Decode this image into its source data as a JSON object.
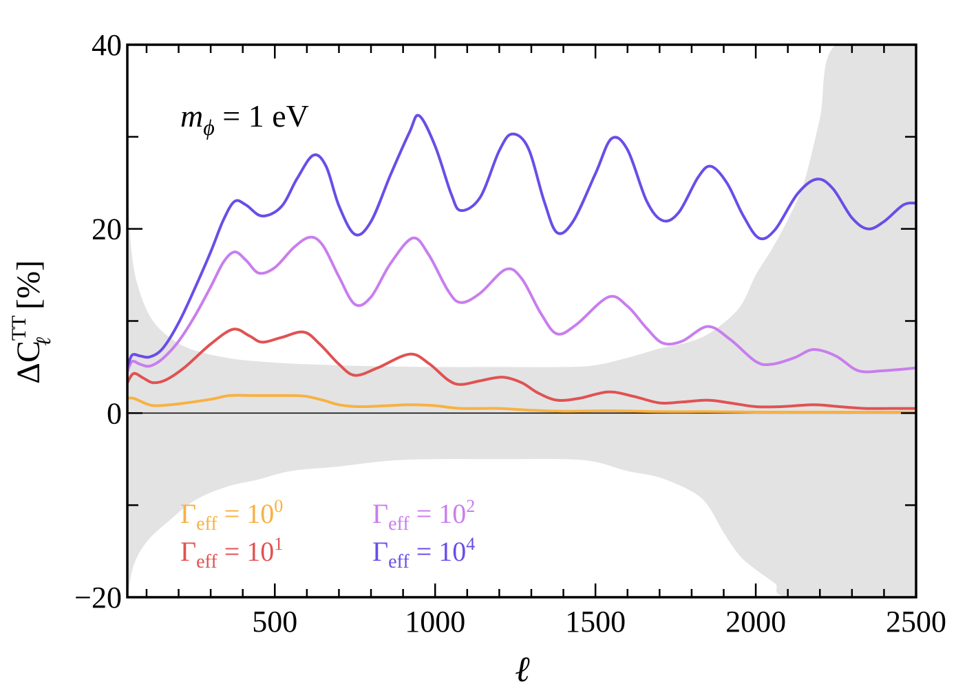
{
  "chart_data": {
    "type": "line",
    "title": "",
    "annotation": {
      "symbol": "m",
      "subscript": "ϕ",
      "rest": " = 1 eV"
    },
    "xlabel": "ℓ",
    "ylabel": {
      "prefix": "ΔC",
      "superscript": "TT",
      "subscript": "ℓ",
      "unit": "[%]"
    },
    "xlim": [
      40,
      2500
    ],
    "ylim": [
      -20,
      40
    ],
    "xticks": [
      500,
      1000,
      1500,
      2000,
      2500
    ],
    "yticks": [
      -20,
      0,
      20,
      40
    ],
    "ytick_labels": [
      "−20",
      "0",
      "20",
      "40"
    ],
    "legend_placement": "bottom-left",
    "series": [
      {
        "name": "Γeff = 10^0",
        "label": {
          "base": "Γ",
          "sub": "eff",
          "eq": " = 10",
          "exp": "0"
        },
        "color": "#F8B142",
        "points": [
          [
            40,
            1.6
          ],
          [
            60,
            1.6
          ],
          [
            100,
            1.0
          ],
          [
            130,
            0.8
          ],
          [
            200,
            1.0
          ],
          [
            300,
            1.5
          ],
          [
            360,
            1.9
          ],
          [
            450,
            1.9
          ],
          [
            550,
            1.9
          ],
          [
            600,
            1.8
          ],
          [
            650,
            1.4
          ],
          [
            700,
            0.9
          ],
          [
            760,
            0.7
          ],
          [
            850,
            0.8
          ],
          [
            920,
            0.9
          ],
          [
            1000,
            0.8
          ],
          [
            1080,
            0.5
          ],
          [
            1200,
            0.5
          ],
          [
            1300,
            0.3
          ],
          [
            1400,
            0.2
          ],
          [
            1550,
            0.25
          ],
          [
            1700,
            0.15
          ],
          [
            1850,
            0.15
          ],
          [
            2000,
            0.1
          ],
          [
            2200,
            0.1
          ],
          [
            2500,
            0.1
          ]
        ]
      },
      {
        "name": "Γeff = 10^1",
        "label": {
          "base": "Γ",
          "sub": "eff",
          "eq": " = 10",
          "exp": "1"
        },
        "color": "#E05252",
        "points": [
          [
            40,
            3.3
          ],
          [
            60,
            4.3
          ],
          [
            90,
            3.8
          ],
          [
            120,
            3.3
          ],
          [
            160,
            3.6
          ],
          [
            220,
            5.0
          ],
          [
            300,
            7.5
          ],
          [
            370,
            9.1
          ],
          [
            420,
            8.4
          ],
          [
            460,
            7.7
          ],
          [
            520,
            8.2
          ],
          [
            590,
            8.8
          ],
          [
            640,
            7.5
          ],
          [
            700,
            5.3
          ],
          [
            750,
            4.1
          ],
          [
            820,
            4.9
          ],
          [
            920,
            6.4
          ],
          [
            980,
            5.4
          ],
          [
            1040,
            3.6
          ],
          [
            1080,
            3.1
          ],
          [
            1140,
            3.5
          ],
          [
            1210,
            3.9
          ],
          [
            1270,
            3.3
          ],
          [
            1320,
            2.2
          ],
          [
            1380,
            1.4
          ],
          [
            1450,
            1.6
          ],
          [
            1540,
            2.3
          ],
          [
            1620,
            1.8
          ],
          [
            1700,
            1.1
          ],
          [
            1770,
            1.2
          ],
          [
            1850,
            1.4
          ],
          [
            1920,
            1.1
          ],
          [
            2000,
            0.7
          ],
          [
            2080,
            0.7
          ],
          [
            2180,
            0.9
          ],
          [
            2260,
            0.7
          ],
          [
            2340,
            0.5
          ],
          [
            2420,
            0.5
          ],
          [
            2500,
            0.5
          ]
        ]
      },
      {
        "name": "Γeff = 10^2",
        "label": {
          "base": "Γ",
          "sub": "eff",
          "eq": " = 10",
          "exp": "2"
        },
        "color": "#C87EEE",
        "points": [
          [
            40,
            4.5
          ],
          [
            55,
            5.6
          ],
          [
            80,
            5.3
          ],
          [
            110,
            5.1
          ],
          [
            150,
            5.9
          ],
          [
            200,
            7.8
          ],
          [
            250,
            10.5
          ],
          [
            300,
            13.7
          ],
          [
            340,
            16.4
          ],
          [
            375,
            17.5
          ],
          [
            410,
            16.6
          ],
          [
            450,
            15.2
          ],
          [
            500,
            15.8
          ],
          [
            560,
            18.0
          ],
          [
            610,
            19.1
          ],
          [
            650,
            18.2
          ],
          [
            700,
            14.8
          ],
          [
            750,
            11.8
          ],
          [
            800,
            12.6
          ],
          [
            860,
            16.2
          ],
          [
            930,
            19.0
          ],
          [
            980,
            17.2
          ],
          [
            1040,
            13.3
          ],
          [
            1080,
            12.0
          ],
          [
            1140,
            13.0
          ],
          [
            1220,
            15.6
          ],
          [
            1270,
            14.6
          ],
          [
            1330,
            10.8
          ],
          [
            1380,
            8.6
          ],
          [
            1440,
            9.6
          ],
          [
            1540,
            12.6
          ],
          [
            1600,
            11.6
          ],
          [
            1660,
            9.2
          ],
          [
            1710,
            7.6
          ],
          [
            1770,
            7.8
          ],
          [
            1850,
            9.4
          ],
          [
            1920,
            8.0
          ],
          [
            2000,
            5.6
          ],
          [
            2050,
            5.3
          ],
          [
            2120,
            6.0
          ],
          [
            2180,
            6.9
          ],
          [
            2250,
            6.2
          ],
          [
            2320,
            4.6
          ],
          [
            2400,
            4.6
          ],
          [
            2500,
            4.9
          ]
        ]
      },
      {
        "name": "Γeff = 10^4",
        "label": {
          "base": "Γ",
          "sub": "eff",
          "eq": " = 10",
          "exp": "4"
        },
        "color": "#6A4DE8",
        "points": [
          [
            40,
            5.0
          ],
          [
            55,
            6.3
          ],
          [
            80,
            6.2
          ],
          [
            110,
            6.1
          ],
          [
            150,
            7.0
          ],
          [
            200,
            9.8
          ],
          [
            250,
            13.5
          ],
          [
            300,
            17.5
          ],
          [
            340,
            21.0
          ],
          [
            375,
            23.0
          ],
          [
            410,
            22.6
          ],
          [
            460,
            21.4
          ],
          [
            520,
            22.4
          ],
          [
            570,
            25.5
          ],
          [
            620,
            28.0
          ],
          [
            660,
            26.8
          ],
          [
            700,
            22.5
          ],
          [
            750,
            19.4
          ],
          [
            800,
            20.8
          ],
          [
            860,
            25.8
          ],
          [
            920,
            30.5
          ],
          [
            950,
            32.3
          ],
          [
            1000,
            29.0
          ],
          [
            1050,
            23.8
          ],
          [
            1080,
            22.0
          ],
          [
            1140,
            23.4
          ],
          [
            1200,
            28.5
          ],
          [
            1240,
            30.3
          ],
          [
            1290,
            28.8
          ],
          [
            1340,
            23.0
          ],
          [
            1380,
            19.6
          ],
          [
            1430,
            20.8
          ],
          [
            1500,
            26.0
          ],
          [
            1550,
            29.8
          ],
          [
            1600,
            28.6
          ],
          [
            1660,
            23.0
          ],
          [
            1710,
            20.9
          ],
          [
            1760,
            21.8
          ],
          [
            1820,
            25.6
          ],
          [
            1860,
            26.8
          ],
          [
            1910,
            25.0
          ],
          [
            1960,
            21.5
          ],
          [
            2010,
            19.0
          ],
          [
            2060,
            19.9
          ],
          [
            2130,
            23.8
          ],
          [
            2190,
            25.4
          ],
          [
            2240,
            24.4
          ],
          [
            2300,
            21.2
          ],
          [
            2350,
            20.0
          ],
          [
            2400,
            20.8
          ],
          [
            2460,
            22.6
          ],
          [
            2500,
            22.8
          ]
        ]
      }
    ],
    "band": {
      "name": "uncertainty",
      "color": "#E3E3E3",
      "upper": [
        [
          40,
          40
        ],
        [
          44,
          24
        ],
        [
          55,
          17
        ],
        [
          80,
          13
        ],
        [
          120,
          10
        ],
        [
          180,
          8
        ],
        [
          250,
          6.8
        ],
        [
          350,
          6.0
        ],
        [
          450,
          5.6
        ],
        [
          600,
          5.3
        ],
        [
          800,
          5.1
        ],
        [
          1000,
          5.0
        ],
        [
          1200,
          5.0
        ],
        [
          1400,
          5.0
        ],
        [
          1500,
          5.2
        ],
        [
          1600,
          6.0
        ],
        [
          1700,
          7.0
        ],
        [
          1800,
          7.8
        ],
        [
          1870,
          9.0
        ],
        [
          1950,
          11.5
        ],
        [
          2000,
          15
        ],
        [
          2050,
          17.8
        ],
        [
          2100,
          21
        ],
        [
          2150,
          25
        ],
        [
          2200,
          32
        ],
        [
          2250,
          40
        ],
        [
          2500,
          40
        ]
      ],
      "lower": [
        [
          40,
          -20
        ],
        [
          60,
          -16.5
        ],
        [
          100,
          -14
        ],
        [
          160,
          -12
        ],
        [
          250,
          -9.5
        ],
        [
          350,
          -8
        ],
        [
          450,
          -7.2
        ],
        [
          550,
          -6.3
        ],
        [
          700,
          -5.8
        ],
        [
          850,
          -5.2
        ],
        [
          1000,
          -5.0
        ],
        [
          1200,
          -5.0
        ],
        [
          1400,
          -5.0
        ],
        [
          1500,
          -5.3
        ],
        [
          1600,
          -6.3
        ],
        [
          1700,
          -7.0
        ],
        [
          1800,
          -8.5
        ],
        [
          1850,
          -10
        ],
        [
          1900,
          -13
        ],
        [
          1950,
          -15.5
        ],
        [
          2000,
          -17
        ],
        [
          2060,
          -18.5
        ],
        [
          2110,
          -20
        ],
        [
          2500,
          -20
        ]
      ]
    }
  }
}
